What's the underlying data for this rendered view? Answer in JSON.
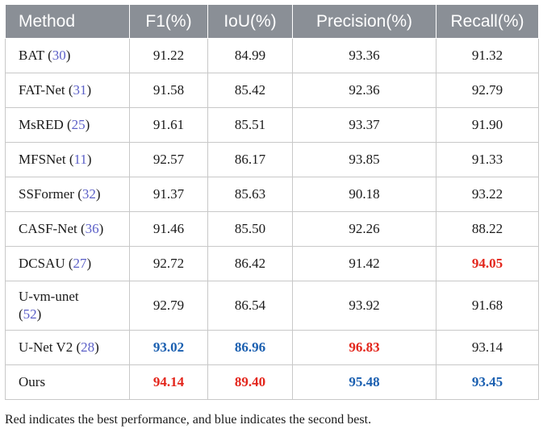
{
  "table": {
    "headers": [
      "Method",
      "F1(%)",
      "IoU(%)",
      "Precision(%)",
      "Recall(%)"
    ],
    "rows": [
      {
        "method": "BAT",
        "ref": "30",
        "f1": "91.22",
        "iou": "84.99",
        "precision": "93.36",
        "recall": "91.32"
      },
      {
        "method": "FAT-Net",
        "ref": "31",
        "f1": "91.58",
        "iou": "85.42",
        "precision": "92.36",
        "recall": "92.79"
      },
      {
        "method": "MsRED",
        "ref": "25",
        "f1": "91.61",
        "iou": "85.51",
        "precision": "93.37",
        "recall": "91.90"
      },
      {
        "method": "MFSNet",
        "ref": "11",
        "f1": "92.57",
        "iou": "86.17",
        "precision": "93.85",
        "recall": "91.33"
      },
      {
        "method": "SSFormer",
        "ref": "32",
        "f1": "91.37",
        "iou": "85.63",
        "precision": "90.18",
        "recall": "93.22"
      },
      {
        "method": "CASF-Net",
        "ref": "36",
        "f1": "91.46",
        "iou": "85.50",
        "precision": "92.26",
        "recall": "88.22"
      },
      {
        "method": "DCSAU",
        "ref": "27",
        "f1": "92.72",
        "iou": "86.42",
        "precision": "91.42",
        "recall": "94.05"
      },
      {
        "method": "U-vm-unet",
        "ref": "52",
        "f1": "92.79",
        "iou": "86.54",
        "precision": "93.92",
        "recall": "91.68"
      },
      {
        "method": "U-Net V2",
        "ref": "28",
        "f1": "93.02",
        "iou": "86.96",
        "precision": "96.83",
        "recall": "93.14"
      },
      {
        "method": "Ours",
        "ref": "",
        "f1": "94.14",
        "iou": "89.40",
        "precision": "95.48",
        "recall": "93.45"
      }
    ],
    "colors": {
      "best": "#e3261c",
      "second": "#1a5fb0",
      "reference": "#5b5fc7",
      "header_bg": "#8a8f96"
    }
  },
  "footnote": "Red indicates the best performance, and blue indicates the second best."
}
